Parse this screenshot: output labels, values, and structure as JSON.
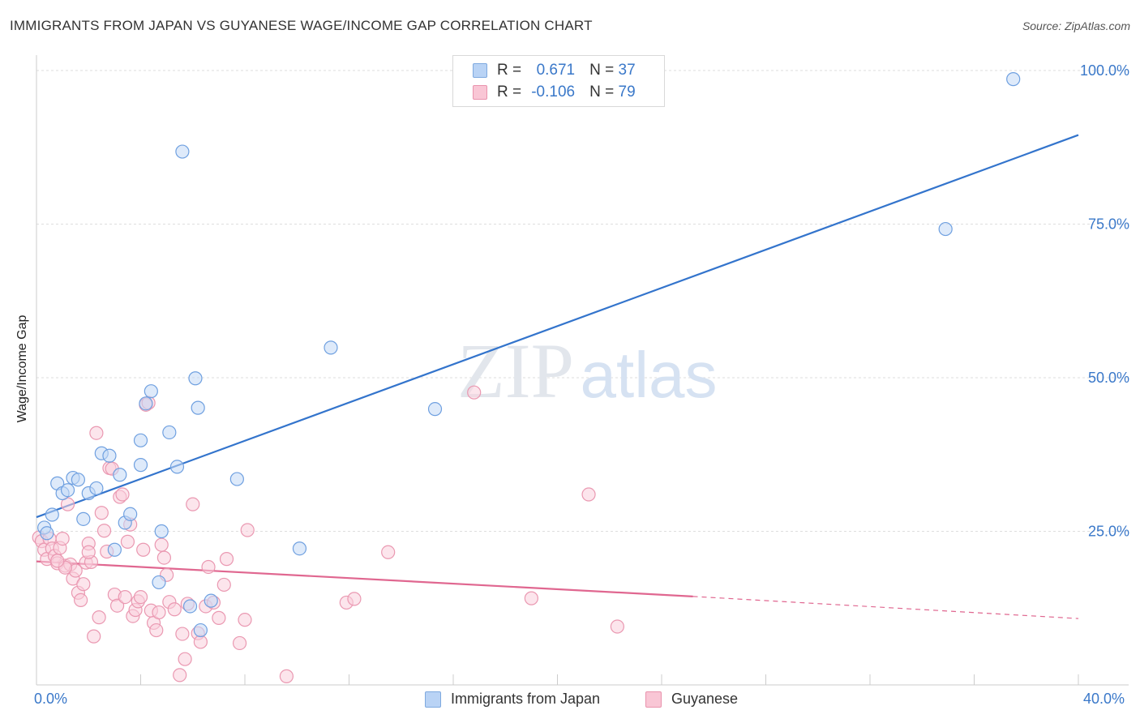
{
  "title": "IMMIGRANTS FROM JAPAN VS GUYANESE WAGE/INCOME GAP CORRELATION CHART",
  "source": "Source: ZipAtlas.com",
  "watermark": {
    "zip": "ZIP",
    "atlas": "atlas"
  },
  "legend": {
    "rows": [
      {
        "r_label": "R =",
        "r_value": "0.671",
        "n_label": "N =",
        "n_value": "37",
        "color": "#b9d3f5",
        "border": "#7ea9df"
      },
      {
        "r_label": "R =",
        "r_value": "-0.106",
        "n_label": "N =",
        "n_value": "79",
        "color": "#f9c6d5",
        "border": "#e993ad"
      }
    ]
  },
  "bottom_legend": [
    "Immigrants from Japan",
    "Guyanese"
  ],
  "chart_data": {
    "type": "scatter",
    "title": "",
    "xlabel": "",
    "ylabel": "Wage/Income Gap",
    "xlim": [
      0,
      40
    ],
    "ylim": [
      0,
      100
    ],
    "x_tick_labels": [
      "0.0%",
      "40.0%"
    ],
    "y_ticks": [
      25,
      50,
      75,
      100
    ],
    "y_tick_labels": [
      "25.0%",
      "50.0%",
      "75.0%",
      "100.0%"
    ],
    "grid": true,
    "legend_position": "top-center",
    "series": [
      {
        "name": "Immigrants from Japan",
        "color": "#6fa0e0",
        "fill": "#c3d8f5",
        "trend": {
          "x": [
            0,
            40
          ],
          "y": [
            27.3,
            89.5
          ],
          "color": "#3374cc"
        },
        "points": [
          [
            0.3,
            25.6
          ],
          [
            0.4,
            24.7
          ],
          [
            0.6,
            27.7
          ],
          [
            0.8,
            32.8
          ],
          [
            1.0,
            31.2
          ],
          [
            1.2,
            31.7
          ],
          [
            1.4,
            33.7
          ],
          [
            1.6,
            33.4
          ],
          [
            1.8,
            27.0
          ],
          [
            2.0,
            31.2
          ],
          [
            2.3,
            32.0
          ],
          [
            2.5,
            37.7
          ],
          [
            2.8,
            37.3
          ],
          [
            3.0,
            22.0
          ],
          [
            3.2,
            34.2
          ],
          [
            3.4,
            26.4
          ],
          [
            3.6,
            27.8
          ],
          [
            4.0,
            39.8
          ],
          [
            4.0,
            35.8
          ],
          [
            4.2,
            45.8
          ],
          [
            4.4,
            47.8
          ],
          [
            4.7,
            16.7
          ],
          [
            4.8,
            25.0
          ],
          [
            5.1,
            41.1
          ],
          [
            5.4,
            35.5
          ],
          [
            5.6,
            86.8
          ],
          [
            5.9,
            12.8
          ],
          [
            6.1,
            49.9
          ],
          [
            6.2,
            45.1
          ],
          [
            6.3,
            8.9
          ],
          [
            6.7,
            13.7
          ],
          [
            7.7,
            33.5
          ],
          [
            10.1,
            22.2
          ],
          [
            11.3,
            54.9
          ],
          [
            15.3,
            44.9
          ],
          [
            34.9,
            74.2
          ],
          [
            37.5,
            98.6
          ]
        ]
      },
      {
        "name": "Guyanese",
        "color": "#ea98b1",
        "fill": "#f9d0dc",
        "trend": {
          "x": [
            0,
            25.2
          ],
          "y": [
            20.1,
            14.4
          ],
          "color": "#e06790"
        },
        "trend_dashed": {
          "x": [
            25.2,
            40
          ],
          "y": [
            14.4,
            10.8
          ]
        },
        "points": [
          [
            0.1,
            24.0
          ],
          [
            0.2,
            23.4
          ],
          [
            0.3,
            22.0
          ],
          [
            0.4,
            20.5
          ],
          [
            0.5,
            23.8
          ],
          [
            0.6,
            22.2
          ],
          [
            0.7,
            21.0
          ],
          [
            0.8,
            19.8
          ],
          [
            0.9,
            22.3
          ],
          [
            1.0,
            23.8
          ],
          [
            1.1,
            19.4
          ],
          [
            1.2,
            29.4
          ],
          [
            1.3,
            19.6
          ],
          [
            1.4,
            17.3
          ],
          [
            1.5,
            18.6
          ],
          [
            1.6,
            15.0
          ],
          [
            1.7,
            13.8
          ],
          [
            1.8,
            16.4
          ],
          [
            1.9,
            19.9
          ],
          [
            2.0,
            23.0
          ],
          [
            2.1,
            20.0
          ],
          [
            2.2,
            7.9
          ],
          [
            2.3,
            41.0
          ],
          [
            2.4,
            11.0
          ],
          [
            2.5,
            28.0
          ],
          [
            2.6,
            25.1
          ],
          [
            2.7,
            21.7
          ],
          [
            2.8,
            35.3
          ],
          [
            2.9,
            35.2
          ],
          [
            3.0,
            14.7
          ],
          [
            3.1,
            12.9
          ],
          [
            3.2,
            30.6
          ],
          [
            3.3,
            31.0
          ],
          [
            3.4,
            14.3
          ],
          [
            3.5,
            23.3
          ],
          [
            3.6,
            26.1
          ],
          [
            3.7,
            11.2
          ],
          [
            3.8,
            12.2
          ],
          [
            3.9,
            13.6
          ],
          [
            4.0,
            14.3
          ],
          [
            4.1,
            22.0
          ],
          [
            4.2,
            45.6
          ],
          [
            4.3,
            45.9
          ],
          [
            4.4,
            12.1
          ],
          [
            4.5,
            10.1
          ],
          [
            4.6,
            8.9
          ],
          [
            4.7,
            11.8
          ],
          [
            4.8,
            22.8
          ],
          [
            4.9,
            20.7
          ],
          [
            5.0,
            17.9
          ],
          [
            5.1,
            13.5
          ],
          [
            5.3,
            12.3
          ],
          [
            5.5,
            1.6
          ],
          [
            5.6,
            8.3
          ],
          [
            5.7,
            4.2
          ],
          [
            5.8,
            13.2
          ],
          [
            6.0,
            29.4
          ],
          [
            6.2,
            8.4
          ],
          [
            6.3,
            7.0
          ],
          [
            6.5,
            12.8
          ],
          [
            6.6,
            19.2
          ],
          [
            6.8,
            13.4
          ],
          [
            7.0,
            10.9
          ],
          [
            7.2,
            16.3
          ],
          [
            7.3,
            20.5
          ],
          [
            7.8,
            6.8
          ],
          [
            8.0,
            10.6
          ],
          [
            8.1,
            25.2
          ],
          [
            9.6,
            1.4
          ],
          [
            11.9,
            13.4
          ],
          [
            12.2,
            14.0
          ],
          [
            13.5,
            21.6
          ],
          [
            16.8,
            47.6
          ],
          [
            19.0,
            14.1
          ],
          [
            21.2,
            31.0
          ],
          [
            22.3,
            9.5
          ],
          [
            1.1,
            19.1
          ],
          [
            2.0,
            21.6
          ],
          [
            0.8,
            20.2
          ]
        ]
      }
    ]
  }
}
